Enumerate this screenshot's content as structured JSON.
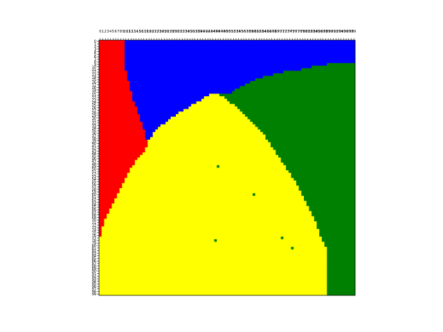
{
  "chart_data": {
    "type": "heatmap",
    "title": "",
    "xlabel": "",
    "ylabel": "",
    "x_ticks": {
      "start": 0,
      "end": 99,
      "step": 1,
      "label_mode": "last-digit",
      "position": "top"
    },
    "y_ticks": {
      "start": 0,
      "end": 99,
      "step": 1,
      "position": "left"
    },
    "grid_size": [
      100,
      100
    ],
    "colors": {
      "red": "#ff0000",
      "blue": "#0000ff",
      "green": "#008000",
      "yellow": "#ffff00",
      "background": "#ffffff"
    },
    "regions": [
      {
        "name": "red",
        "color": "#ff0000",
        "description_rows": "left wedge, columns 0-9 at top widening to ~19 near row 40, narrowing to 0 near row 78"
      },
      {
        "name": "blue",
        "color": "#0000ff",
        "description_rows": "top region above yellow dome and left of green arc"
      },
      {
        "name": "green",
        "color": "#008000",
        "description_rows": "right arc region"
      },
      {
        "name": "yellow",
        "color": "#ffff00",
        "description_rows": "central dome with apex near column 44 row 21, filling the bottom"
      }
    ],
    "boundaries": {
      "red_right_by_row": [
        [
          0,
          10
        ],
        [
          10,
          10
        ],
        [
          14,
          11
        ],
        [
          22,
          13
        ],
        [
          30,
          16
        ],
        [
          36,
          18
        ],
        [
          41,
          19
        ],
        [
          45,
          16
        ],
        [
          50,
          12
        ],
        [
          56,
          9
        ],
        [
          62,
          6
        ],
        [
          68,
          3
        ],
        [
          74,
          1
        ],
        [
          78,
          0
        ],
        [
          99,
          0
        ]
      ],
      "dome_apex": [
        44,
        21
      ],
      "yellow_left_by_row": [
        [
          21,
          43
        ],
        [
          24,
          38
        ],
        [
          27,
          33
        ],
        [
          30,
          28
        ],
        [
          34,
          23
        ],
        [
          40,
          18
        ],
        [
          46,
          13
        ],
        [
          54,
          8
        ],
        [
          62,
          4
        ],
        [
          70,
          1
        ],
        [
          78,
          0
        ]
      ],
      "yellow_right_by_row": [
        [
          21,
          46
        ],
        [
          23,
          49
        ],
        [
          27,
          54
        ],
        [
          31,
          58
        ],
        [
          36,
          63
        ],
        [
          42,
          67
        ],
        [
          48,
          71
        ],
        [
          54,
          75
        ],
        [
          60,
          78
        ],
        [
          66,
          81
        ],
        [
          72,
          84
        ],
        [
          78,
          86
        ],
        [
          82,
          88
        ],
        [
          99,
          88
        ]
      ],
      "green_left_by_row": [
        [
          9,
          89
        ],
        [
          10,
          83
        ],
        [
          11,
          79
        ],
        [
          12,
          72
        ],
        [
          13,
          68
        ],
        [
          14,
          64
        ],
        [
          15,
          61
        ],
        [
          16,
          59
        ],
        [
          17,
          57
        ],
        [
          18,
          55
        ],
        [
          19,
          53
        ],
        [
          20,
          52
        ],
        [
          21,
          51
        ],
        [
          22,
          51
        ],
        [
          23,
          52
        ]
      ]
    },
    "outlier_cells": [
      {
        "x": 65,
        "y": 35,
        "color": "#008000"
      },
      {
        "x": 46,
        "y": 49,
        "color": "#008000"
      },
      {
        "x": 60,
        "y": 60,
        "color": "#008000"
      },
      {
        "x": 45,
        "y": 78,
        "color": "#008000"
      },
      {
        "x": 71,
        "y": 77,
        "color": "#008000"
      },
      {
        "x": 75,
        "y": 81,
        "color": "#008000"
      }
    ],
    "grid": false,
    "legend": "none"
  }
}
